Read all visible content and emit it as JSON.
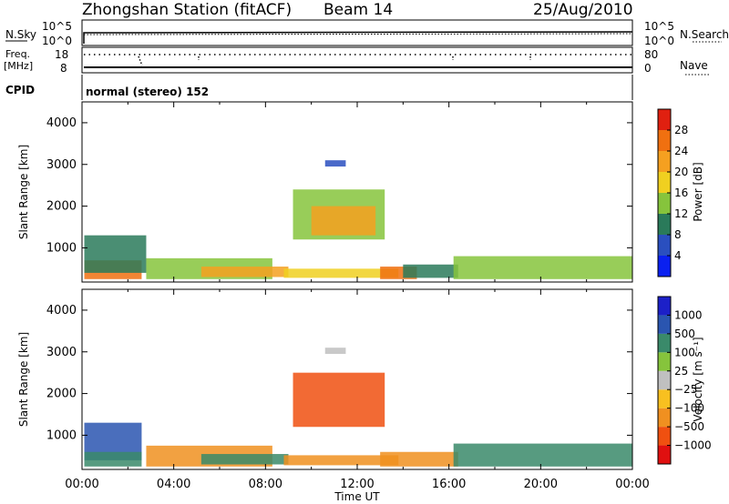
{
  "header": {
    "station": "Zhongshan Station (fitACF)",
    "beam": "Beam 14",
    "date": "25/Aug/2010"
  },
  "top_panels": {
    "nsky_label": "N.Sky",
    "nsearch_label": "N.Search",
    "freq_label": "Freq.",
    "freq_unit": "[MHz]",
    "nave_label": "Nave",
    "cpid_label": "CPID",
    "noise_ticks": [
      "10^5",
      "10^0"
    ],
    "freq_ticks": [
      "18",
      "8"
    ],
    "nave_ticks": [
      "80",
      "0"
    ],
    "cpid_text": "normal (stereo) 152"
  },
  "colors": {
    "power": [
      "#0a20f0",
      "#2a4fbf",
      "#2a7a5a",
      "#86c43c",
      "#f0d020",
      "#f5a020",
      "#f07010",
      "#e02010"
    ],
    "velocity": [
      "#e01010",
      "#f05010",
      "#f09020",
      "#f8c020",
      "#c0c0c0",
      "#86c43c",
      "#3a8a6a",
      "#2a55b0",
      "#1c20c8"
    ]
  },
  "chart_data": [
    {
      "type": "heatmap",
      "quantity": "power",
      "ylabel": "Slant Range [km]",
      "yticks": [
        "1000",
        "2000",
        "3000",
        "4000"
      ],
      "ylim": [
        180,
        4500
      ],
      "xlim": [
        "00:00",
        "24:00"
      ],
      "colorbar_label": "Power [dB]",
      "colorbar_ticks": [
        "4",
        "8",
        "12",
        "16",
        "20",
        "24",
        "28"
      ],
      "regions": [
        {
          "t0": 0.1,
          "t1": 2.6,
          "r0": 250,
          "r1": 700,
          "level": 6
        },
        {
          "t0": 0.1,
          "t1": 2.8,
          "r0": 400,
          "r1": 1300,
          "level": 2
        },
        {
          "t0": 2.8,
          "t1": 8.3,
          "r0": 250,
          "r1": 750,
          "level": 3
        },
        {
          "t0": 5.2,
          "t1": 9.0,
          "r0": 300,
          "r1": 550,
          "level": 5
        },
        {
          "t0": 8.8,
          "t1": 13.8,
          "r0": 280,
          "r1": 500,
          "level": 4
        },
        {
          "t0": 9.2,
          "t1": 13.2,
          "r0": 1200,
          "r1": 2400,
          "level": 3
        },
        {
          "t0": 10.0,
          "t1": 12.8,
          "r0": 1300,
          "r1": 2000,
          "level": 5
        },
        {
          "t0": 13.0,
          "t1": 14.6,
          "r0": 250,
          "r1": 550,
          "level": 6
        },
        {
          "t0": 14.0,
          "t1": 16.4,
          "r0": 280,
          "r1": 600,
          "level": 2
        },
        {
          "t0": 16.2,
          "t1": 24.0,
          "r0": 250,
          "r1": 800,
          "level": 3
        },
        {
          "t0": 10.6,
          "t1": 11.5,
          "r0": 2950,
          "r1": 3100,
          "level": 1
        }
      ]
    },
    {
      "type": "heatmap",
      "quantity": "velocity",
      "ylabel": "Slant Range [km]",
      "yticks": [
        "1000",
        "2000",
        "3000",
        "4000"
      ],
      "ylim": [
        180,
        4500
      ],
      "xlabel": "Time UT",
      "xticks": [
        "00:00",
        "04:00",
        "08:00",
        "12:00",
        "16:00",
        "20:00",
        "00:00"
      ],
      "xlim": [
        "00:00",
        "24:00"
      ],
      "colorbar_label": "Velocity [m s⁻¹]",
      "colorbar_ticks": [
        "1000",
        "500",
        "100",
        "25",
        "−25",
        "−100",
        "−500",
        "−1000"
      ],
      "regions": [
        {
          "t0": 0.1,
          "t1": 2.6,
          "r0": 400,
          "r1": 1300,
          "level": 7
        },
        {
          "t0": 0.1,
          "t1": 2.6,
          "r0": 250,
          "r1": 600,
          "level": 6
        },
        {
          "t0": 2.8,
          "t1": 8.3,
          "r0": 250,
          "r1": 750,
          "level": 2
        },
        {
          "t0": 5.2,
          "t1": 9.0,
          "r0": 300,
          "r1": 550,
          "level": 6
        },
        {
          "t0": 8.8,
          "t1": 13.8,
          "r0": 280,
          "r1": 520,
          "level": 2
        },
        {
          "t0": 9.2,
          "t1": 13.2,
          "r0": 1200,
          "r1": 2500,
          "level": 1
        },
        {
          "t0": 13.0,
          "t1": 16.4,
          "r0": 250,
          "r1": 600,
          "level": 2
        },
        {
          "t0": 16.2,
          "t1": 24.0,
          "r0": 250,
          "r1": 800,
          "level": 6
        },
        {
          "t0": 10.6,
          "t1": 11.5,
          "r0": 2950,
          "r1": 3100,
          "level": 4
        }
      ]
    }
  ]
}
